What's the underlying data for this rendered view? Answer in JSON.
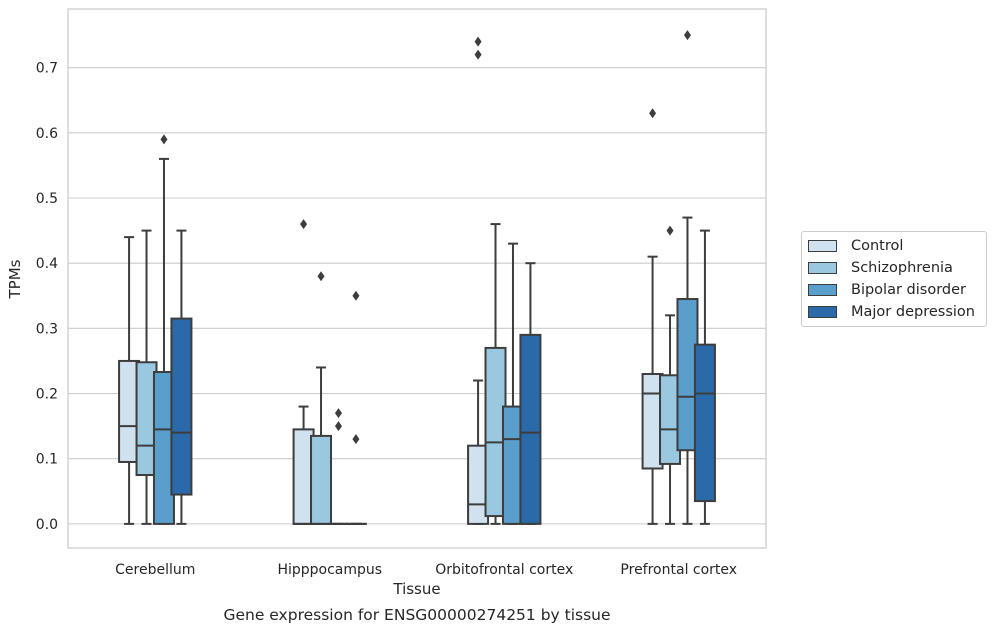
{
  "chart_data": {
    "type": "box",
    "xlabel": "Tissue",
    "ylabel": "TPMs",
    "caption": "Gene expression for ENSG00000274251 by tissue",
    "ylim": [
      -0.037,
      0.79
    ],
    "yticks": [
      0.0,
      0.1,
      0.2,
      0.3,
      0.4,
      0.5,
      0.6,
      0.7
    ],
    "ytick_labels": [
      "0.0",
      "0.1",
      "0.2",
      "0.3",
      "0.4",
      "0.5",
      "0.6",
      "0.7"
    ],
    "grid": "horizontal",
    "legend_position": "right",
    "categories": [
      "Cerebellum",
      "Hipppocampus",
      "Orbitofrontal cortex",
      "Prefrontal cortex"
    ],
    "series": [
      {
        "name": "Control",
        "color": "#d0e1f0",
        "boxes": [
          {
            "whislo": 0.0,
            "q1": 0.095,
            "med": 0.15,
            "q3": 0.25,
            "whishi": 0.44,
            "fliers": []
          },
          {
            "whislo": 0.0,
            "q1": 0.0,
            "med": 0.0,
            "q3": 0.145,
            "whishi": 0.18,
            "fliers": [
              0.46
            ]
          },
          {
            "whislo": 0.0,
            "q1": 0.0,
            "med": 0.03,
            "q3": 0.12,
            "whishi": 0.22,
            "fliers": [
              0.72,
              0.74
            ]
          },
          {
            "whislo": 0.0,
            "q1": 0.085,
            "med": 0.2,
            "q3": 0.23,
            "whishi": 0.41,
            "fliers": [
              0.63
            ]
          }
        ]
      },
      {
        "name": "Schizophrenia",
        "color": "#9ac8e0",
        "boxes": [
          {
            "whislo": 0.0,
            "q1": 0.075,
            "med": 0.12,
            "q3": 0.248,
            "whishi": 0.45,
            "fliers": []
          },
          {
            "whislo": 0.0,
            "q1": 0.0,
            "med": 0.0,
            "q3": 0.135,
            "whishi": 0.24,
            "fliers": [
              0.38
            ]
          },
          {
            "whislo": 0.0,
            "q1": 0.012,
            "med": 0.125,
            "q3": 0.27,
            "whishi": 0.46,
            "fliers": []
          },
          {
            "whislo": 0.0,
            "q1": 0.092,
            "med": 0.145,
            "q3": 0.228,
            "whishi": 0.32,
            "fliers": [
              0.45
            ]
          }
        ]
      },
      {
        "name": "Bipolar disorder",
        "color": "#5a9fcc",
        "boxes": [
          {
            "whislo": 0.0,
            "q1": 0.0,
            "med": 0.145,
            "q3": 0.233,
            "whishi": 0.56,
            "fliers": [
              0.59
            ]
          },
          {
            "whislo": 0.0,
            "q1": 0.0,
            "med": 0.0,
            "q3": 0.0,
            "whishi": 0.0,
            "fliers": [
              0.15,
              0.17
            ]
          },
          {
            "whislo": 0.0,
            "q1": 0.0,
            "med": 0.13,
            "q3": 0.18,
            "whishi": 0.43,
            "fliers": []
          },
          {
            "whislo": 0.0,
            "q1": 0.113,
            "med": 0.195,
            "q3": 0.345,
            "whishi": 0.47,
            "fliers": [
              0.75
            ]
          }
        ]
      },
      {
        "name": "Major depression",
        "color": "#2a6aa8",
        "boxes": [
          {
            "whislo": 0.0,
            "q1": 0.045,
            "med": 0.14,
            "q3": 0.315,
            "whishi": 0.45,
            "fliers": []
          },
          {
            "whislo": 0.0,
            "q1": 0.0,
            "med": 0.0,
            "q3": 0.0,
            "whishi": 0.0,
            "fliers": [
              0.13,
              0.35
            ]
          },
          {
            "whislo": 0.0,
            "q1": 0.0,
            "med": 0.14,
            "q3": 0.29,
            "whishi": 0.4,
            "fliers": []
          },
          {
            "whislo": 0.0,
            "q1": 0.035,
            "med": 0.2,
            "q3": 0.275,
            "whishi": 0.45,
            "fliers": []
          }
        ]
      }
    ]
  }
}
